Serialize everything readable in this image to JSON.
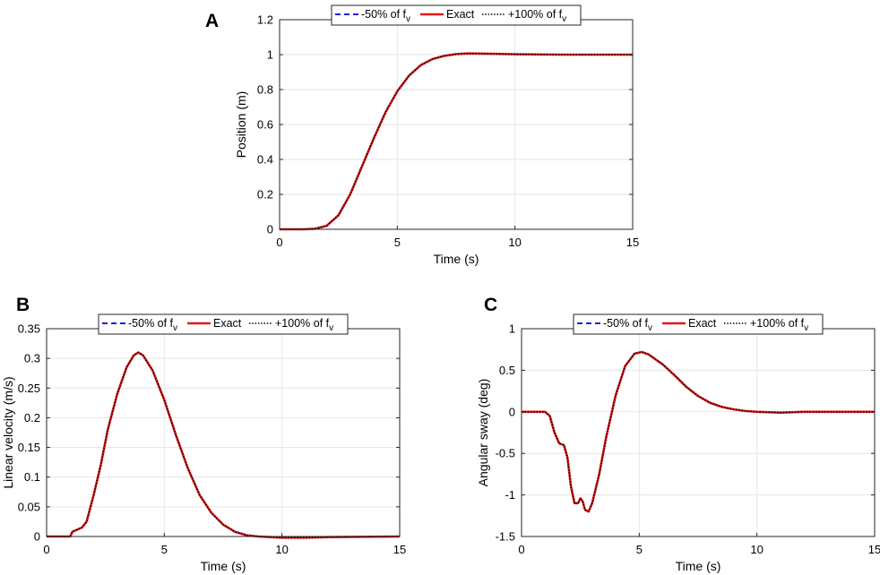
{
  "chart_data": [
    {
      "panel": "A",
      "type": "line",
      "xlabel": "Time (s)",
      "ylabel": "Position (m)",
      "xlim": [
        0,
        15
      ],
      "ylim": [
        0,
        1.2
      ],
      "xticks": [
        0,
        5,
        10,
        15
      ],
      "yticks": [
        0,
        0.2,
        0.4,
        0.6,
        0.8,
        1,
        1.2
      ],
      "ytick_labels": [
        "0",
        "0.2",
        "0.4",
        "0.6",
        "0.8",
        "1",
        "1.2"
      ],
      "grid": true,
      "legend_position": "top-center",
      "x": [
        0,
        1,
        1.5,
        2,
        2.5,
        3,
        3.5,
        4,
        4.5,
        5,
        5.5,
        6,
        6.5,
        7,
        7.5,
        8,
        9,
        10,
        12,
        15
      ],
      "series": [
        {
          "name": "-50% of fv",
          "values": [
            0,
            0,
            0.003,
            0.02,
            0.08,
            0.2,
            0.36,
            0.52,
            0.67,
            0.79,
            0.88,
            0.94,
            0.975,
            0.993,
            1.003,
            1.007,
            1.005,
            1.002,
            1.0,
            1.0
          ]
        },
        {
          "name": "Exact",
          "values": [
            0,
            0,
            0.003,
            0.02,
            0.08,
            0.2,
            0.36,
            0.52,
            0.67,
            0.79,
            0.88,
            0.94,
            0.975,
            0.993,
            1.003,
            1.007,
            1.005,
            1.002,
            1.0,
            1.0
          ]
        },
        {
          "name": "+100% of fv",
          "values": [
            0,
            0,
            0.003,
            0.02,
            0.08,
            0.2,
            0.36,
            0.52,
            0.67,
            0.79,
            0.88,
            0.94,
            0.975,
            0.993,
            1.003,
            1.007,
            1.005,
            1.002,
            1.0,
            1.0
          ]
        }
      ]
    },
    {
      "panel": "B",
      "type": "line",
      "xlabel": "Time (s)",
      "ylabel": "Linear velocity (m/s)",
      "xlim": [
        0,
        15
      ],
      "ylim": [
        0,
        0.35
      ],
      "xticks": [
        0,
        5,
        10,
        15
      ],
      "yticks": [
        0,
        0.05,
        0.1,
        0.15,
        0.2,
        0.25,
        0.3,
        0.35
      ],
      "ytick_labels": [
        "0",
        "0.05",
        "0.1",
        "0.15",
        "0.2",
        "0.25",
        "0.3",
        "0.35"
      ],
      "grid": true,
      "legend_position": "top-center",
      "x": [
        0,
        1,
        1.1,
        1.5,
        1.7,
        1.8,
        2.0,
        2.3,
        2.6,
        3.0,
        3.4,
        3.7,
        3.9,
        4.1,
        4.5,
        5.0,
        5.5,
        6.0,
        6.5,
        7.0,
        7.5,
        8.0,
        8.5,
        9.0,
        9.5,
        10.0,
        11.0,
        12.0,
        15.0
      ],
      "series": [
        {
          "name": "-50% of fv",
          "values": [
            0,
            0,
            0.008,
            0.015,
            0.025,
            0.04,
            0.07,
            0.12,
            0.18,
            0.24,
            0.285,
            0.305,
            0.31,
            0.305,
            0.28,
            0.23,
            0.17,
            0.115,
            0.07,
            0.04,
            0.02,
            0.008,
            0.002,
            0.0,
            -0.001,
            -0.002,
            -0.002,
            -0.001,
            0.0
          ]
        },
        {
          "name": "Exact",
          "values": [
            0,
            0,
            0.008,
            0.015,
            0.025,
            0.04,
            0.07,
            0.12,
            0.18,
            0.24,
            0.285,
            0.305,
            0.31,
            0.305,
            0.28,
            0.23,
            0.17,
            0.115,
            0.07,
            0.04,
            0.02,
            0.008,
            0.002,
            0.0,
            -0.001,
            -0.002,
            -0.002,
            -0.001,
            0.0
          ]
        },
        {
          "name": "+100% of fv",
          "values": [
            0,
            0,
            0.008,
            0.015,
            0.025,
            0.04,
            0.07,
            0.12,
            0.18,
            0.24,
            0.285,
            0.305,
            0.31,
            0.305,
            0.28,
            0.23,
            0.17,
            0.115,
            0.07,
            0.04,
            0.02,
            0.008,
            0.002,
            0.0,
            -0.001,
            -0.002,
            -0.002,
            -0.001,
            0.0
          ]
        }
      ]
    },
    {
      "panel": "C",
      "type": "line",
      "xlabel": "Time (s)",
      "ylabel": "Angular sway (deg)",
      "xlim": [
        0,
        15
      ],
      "ylim": [
        -1.5,
        1
      ],
      "xticks": [
        0,
        5,
        10,
        15
      ],
      "yticks": [
        -1.5,
        -1,
        -0.5,
        0,
        0.5,
        1
      ],
      "ytick_labels": [
        "-1.5",
        "-1",
        "-0.5",
        "0",
        "0.5",
        "1"
      ],
      "grid": true,
      "legend_position": "top-center",
      "x": [
        0,
        1.0,
        1.2,
        1.4,
        1.6,
        1.8,
        1.95,
        2.1,
        2.25,
        2.4,
        2.5,
        2.6,
        2.7,
        2.85,
        3.0,
        3.3,
        3.6,
        4.0,
        4.4,
        4.8,
        5.1,
        5.4,
        6.0,
        6.5,
        7.0,
        7.5,
        8.0,
        8.5,
        9.0,
        9.5,
        10.0,
        11.0,
        12.0,
        15.0
      ],
      "series": [
        {
          "name": "-50% of fv",
          "values": [
            0,
            0,
            -0.05,
            -0.25,
            -0.38,
            -0.4,
            -0.55,
            -0.9,
            -1.1,
            -1.1,
            -1.04,
            -1.08,
            -1.18,
            -1.2,
            -1.1,
            -0.75,
            -0.3,
            0.2,
            0.55,
            0.7,
            0.72,
            0.69,
            0.57,
            0.44,
            0.3,
            0.19,
            0.11,
            0.06,
            0.03,
            0.01,
            0.0,
            -0.01,
            0.0,
            0.0
          ]
        },
        {
          "name": "Exact",
          "values": [
            0,
            0,
            -0.05,
            -0.25,
            -0.38,
            -0.4,
            -0.55,
            -0.9,
            -1.1,
            -1.1,
            -1.04,
            -1.08,
            -1.18,
            -1.2,
            -1.1,
            -0.75,
            -0.3,
            0.2,
            0.55,
            0.7,
            0.72,
            0.69,
            0.57,
            0.44,
            0.3,
            0.19,
            0.11,
            0.06,
            0.03,
            0.01,
            0.0,
            -0.01,
            0.0,
            0.0
          ]
        },
        {
          "name": "+100% of fv",
          "values": [
            0,
            0,
            -0.05,
            -0.25,
            -0.38,
            -0.4,
            -0.55,
            -0.9,
            -1.1,
            -1.1,
            -1.04,
            -1.08,
            -1.18,
            -1.2,
            -1.1,
            -0.75,
            -0.3,
            0.2,
            0.55,
            0.7,
            0.72,
            0.69,
            0.57,
            0.44,
            0.3,
            0.19,
            0.11,
            0.06,
            0.03,
            0.01,
            0.0,
            -0.01,
            0.0,
            0.0
          ]
        }
      ]
    }
  ],
  "legend": {
    "entries": [
      {
        "prefix": "-50% of f",
        "sub": "v",
        "color": "#1f1fe0",
        "style": "dashed"
      },
      {
        "prefix": "Exact",
        "sub": "",
        "color": "#e01b1b",
        "style": "solid"
      },
      {
        "prefix": "+100% of f",
        "sub": "v",
        "color": "#000000",
        "style": "dotted"
      }
    ]
  },
  "colors": {
    "series_dashed": "#1f1fe0",
    "series_solid": "#e01b1b",
    "series_dotted": "#000000",
    "grid": "#e6e6e6",
    "axis": "#262626"
  }
}
